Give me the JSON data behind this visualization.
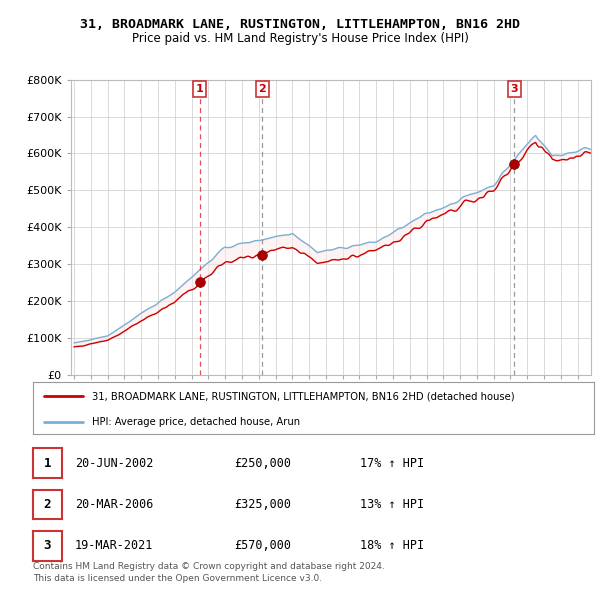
{
  "title": "31, BROADMARK LANE, RUSTINGTON, LITTLEHAMPTON, BN16 2HD",
  "subtitle": "Price paid vs. HM Land Registry's House Price Index (HPI)",
  "background_color": "#ffffff",
  "grid_color": "#cccccc",
  "hpi_color": "#7bafd4",
  "price_color": "#cc0000",
  "ylim": [
    0,
    800000
  ],
  "xlim_start": 1994.8,
  "xlim_end": 2025.8,
  "sale_dates": [
    2002.47,
    2006.22,
    2021.22
  ],
  "sale_prices": [
    250000,
    325000,
    570000
  ],
  "sale_labels": [
    "1",
    "2",
    "3"
  ],
  "sale_vline_colors": [
    "#dd3333",
    "#888888",
    "#888888"
  ],
  "sale_vline_styles": [
    "--",
    "--",
    "--"
  ],
  "legend_line1": "31, BROADMARK LANE, RUSTINGTON, LITTLEHAMPTON, BN16 2HD (detached house)",
  "legend_line2": "HPI: Average price, detached house, Arun",
  "footer1": "Contains HM Land Registry data © Crown copyright and database right 2024.",
  "footer2": "This data is licensed under the Open Government Licence v3.0.",
  "table_rows": [
    [
      "1",
      "20-JUN-2002",
      "£250,000",
      "17% ↑ HPI"
    ],
    [
      "2",
      "20-MAR-2006",
      "£325,000",
      "13% ↑ HPI"
    ],
    [
      "3",
      "19-MAR-2021",
      "£570,000",
      "18% ↑ HPI"
    ]
  ],
  "fill_color": "#d8eaf8",
  "fill_alpha": 0.7
}
